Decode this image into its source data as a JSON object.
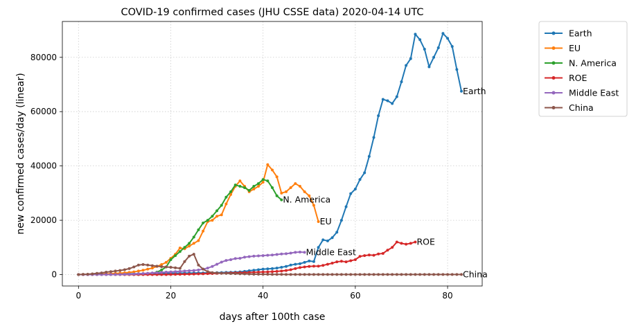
{
  "chart_data": {
    "type": "line",
    "title": "COVID-19 confirmed cases (JHU CSSE data) 2020-04-14 UTC",
    "xlabel": "days after 100th case",
    "ylabel": "new confirmed cases/day (linear)",
    "xlim": [
      -3.5,
      87.5
    ],
    "ylim": [
      -4200,
      93200
    ],
    "xticks": [
      0,
      20,
      40,
      60,
      80
    ],
    "yticks": [
      0,
      20000,
      40000,
      60000,
      80000
    ],
    "grid": true,
    "legend_position": "outside-top-right",
    "series": [
      {
        "name": "Earth",
        "color": "#1f77b4",
        "end_label": "Earth",
        "x_start": 0,
        "values": [
          0,
          0,
          50,
          100,
          120,
          150,
          180,
          200,
          220,
          240,
          260,
          280,
          300,
          330,
          360,
          380,
          400,
          420,
          440,
          460,
          480,
          500,
          520,
          540,
          560,
          580,
          600,
          620,
          640,
          660,
          700,
          750,
          800,
          850,
          900,
          1000,
          1200,
          1400,
          1600,
          1800,
          2000,
          2100,
          2200,
          2400,
          2700,
          3000,
          3500,
          3800,
          4000,
          4500,
          5000,
          4800,
          10000,
          12800,
          12400,
          13600,
          15600,
          20000,
          25000,
          29800,
          31500,
          35000,
          37500,
          43500,
          50500,
          58500,
          64500,
          64000,
          63000,
          65500,
          71000,
          77000,
          79500,
          88500,
          86500,
          83000,
          76500,
          80000,
          83500,
          88800,
          87000,
          84000,
          75500,
          67500
        ]
      },
      {
        "name": "EU",
        "color": "#ff7f0e",
        "end_label": "EU",
        "x_start": 0,
        "values": [
          0,
          20,
          40,
          80,
          130,
          200,
          260,
          330,
          420,
          520,
          650,
          800,
          1000,
          1300,
          1600,
          2000,
          2400,
          3000,
          3700,
          4500,
          6000,
          7500,
          9800,
          9500,
          10500,
          11500,
          12500,
          16000,
          19500,
          20000,
          21500,
          22000,
          26000,
          29500,
          32500,
          34500,
          32500,
          30500,
          31500,
          32500,
          34000,
          40500,
          38500,
          36000,
          30000,
          30500,
          32000,
          33500,
          32500,
          30500,
          29000,
          25500,
          19500
        ]
      },
      {
        "name": "N. America",
        "color": "#2ca02c",
        "end_label": "N. America",
        "x_start": 0,
        "values": [
          0,
          0,
          0,
          0,
          0,
          0,
          0,
          0,
          0,
          0,
          0,
          0,
          0,
          0,
          100,
          200,
          500,
          900,
          1700,
          2800,
          5500,
          7000,
          8500,
          10000,
          11500,
          13800,
          16500,
          19000,
          20000,
          21500,
          23500,
          25500,
          28500,
          30500,
          33000,
          32500,
          32000,
          31000,
          32500,
          33500,
          35000,
          34500,
          32000,
          29000,
          27500
        ]
      },
      {
        "name": "ROE",
        "color": "#d62728",
        "end_label": "ROE",
        "x_start": 0,
        "values": [
          0,
          0,
          0,
          0,
          0,
          0,
          0,
          0,
          0,
          0,
          0,
          0,
          0,
          0,
          0,
          0,
          0,
          0,
          0,
          0,
          50,
          80,
          100,
          130,
          160,
          200,
          250,
          300,
          350,
          400,
          450,
          500,
          550,
          600,
          650,
          700,
          750,
          800,
          850,
          900,
          950,
          1000,
          1100,
          1200,
          1300,
          1500,
          1800,
          2200,
          2600,
          2800,
          3000,
          3100,
          3100,
          3400,
          3800,
          4200,
          4700,
          4900,
          4700,
          5100,
          5500,
          6700,
          7000,
          7200,
          7100,
          7600,
          7800,
          9000,
          10000,
          12000,
          11500,
          11200,
          11500,
          12000
        ]
      },
      {
        "name": "Middle East",
        "color": "#9467bd",
        "end_label": "Middle East",
        "x_start": 0,
        "values": [
          0,
          0,
          0,
          0,
          0,
          0,
          0,
          0,
          0,
          50,
          100,
          150,
          200,
          300,
          400,
          500,
          600,
          700,
          800,
          900,
          1000,
          1100,
          1200,
          1300,
          1400,
          1500,
          1700,
          2000,
          2400,
          3000,
          3800,
          4600,
          5200,
          5500,
          5900,
          6000,
          6400,
          6600,
          6800,
          6900,
          7000,
          7100,
          7200,
          7400,
          7600,
          7700,
          7900,
          8200,
          8300,
          8200
        ]
      },
      {
        "name": "China",
        "color": "#8c564b",
        "end_label": "China",
        "x_start": 0,
        "values": [
          0,
          100,
          150,
          250,
          450,
          600,
          900,
          1100,
          1300,
          1500,
          1800,
          2200,
          2800,
          3500,
          3700,
          3500,
          3300,
          3100,
          2900,
          2800,
          2700,
          2500,
          2300,
          4800,
          6800,
          7500,
          3500,
          2000,
          1100,
          700,
          600,
          500,
          450,
          400,
          350,
          300,
          250,
          200,
          150,
          120,
          100,
          90,
          80,
          70,
          60,
          50,
          50,
          40,
          40,
          40,
          30,
          30,
          30,
          30,
          30,
          30,
          30,
          30,
          30,
          30,
          30,
          30,
          30,
          30,
          30,
          30,
          30,
          30,
          30,
          30,
          30,
          30,
          30,
          30,
          30,
          30,
          30,
          30,
          30,
          30,
          30,
          30,
          30,
          30
        ]
      }
    ]
  }
}
